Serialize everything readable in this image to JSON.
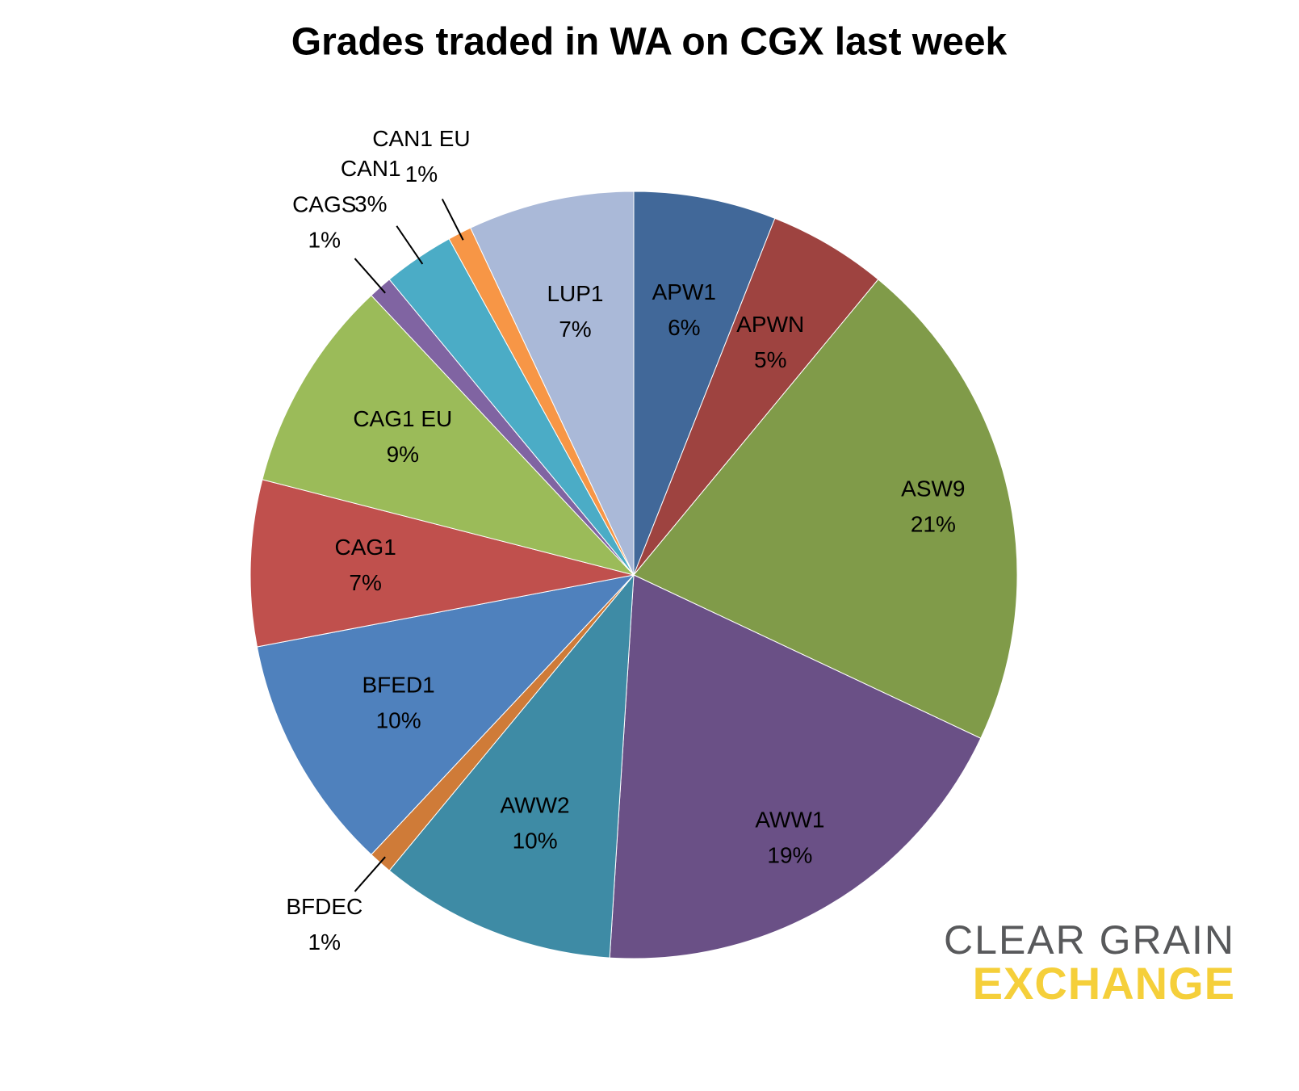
{
  "chart_data": {
    "type": "pie",
    "title": "Grades traded in WA on CGX last week",
    "categories": [
      "APW1",
      "APWN",
      "ASW9",
      "AWW1",
      "AWW2",
      "BFDEC",
      "BFED1",
      "CAG1",
      "CAG1 EU",
      "CAGS",
      "CAN1",
      "CAN1 EU",
      "LUP1"
    ],
    "values": [
      6,
      5,
      21,
      19,
      10,
      1,
      10,
      7,
      9,
      1,
      3,
      1,
      7
    ],
    "value_labels": [
      "6%",
      "5%",
      "21%",
      "19%",
      "10%",
      "1%",
      "10%",
      "7%",
      "9%",
      "1%",
      "3%",
      "1%",
      "7%"
    ],
    "colors": [
      "#416899",
      "#9e4340",
      "#809b49",
      "#6a5086",
      "#3e8ba5",
      "#cf7b38",
      "#4f81bd",
      "#c0504d",
      "#9bbb59",
      "#8064a2",
      "#4bacc6",
      "#f79646",
      "#aab9d8"
    ]
  },
  "logo": {
    "line1": "CLEAR GRAIN",
    "line2": "EXCHANGE"
  }
}
